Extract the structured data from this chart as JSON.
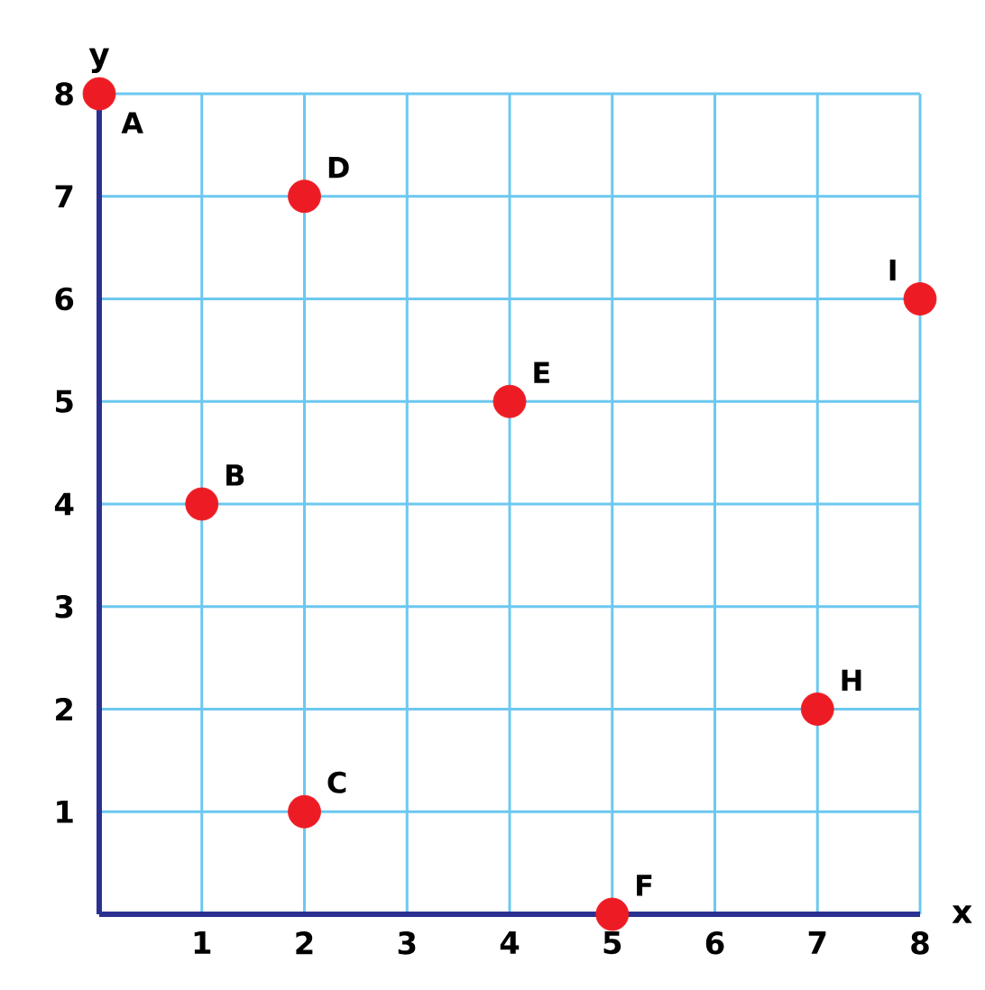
{
  "chart_data": {
    "type": "scatter",
    "xlabel": "x",
    "ylabel": "y",
    "x": [
      0,
      1,
      2,
      2,
      4,
      5,
      7,
      8
    ],
    "values": [
      8,
      4,
      1,
      7,
      5,
      0,
      2,
      6
    ],
    "color": "#ed1c24",
    "marker": "circle",
    "xlim": [
      0,
      8
    ],
    "ylim": [
      0,
      8
    ],
    "xticks": [
      1,
      2,
      3,
      4,
      5,
      6,
      7,
      8
    ],
    "yticks": [
      1,
      2,
      3,
      4,
      5,
      6,
      7,
      8
    ],
    "grid": true,
    "annotations": [
      {
        "text": "A",
        "x": 0,
        "y": 8
      },
      {
        "text": "B",
        "x": 1,
        "y": 4
      },
      {
        "text": "C",
        "x": 2,
        "y": 1
      },
      {
        "text": "D",
        "x": 2,
        "y": 7
      },
      {
        "text": "E",
        "x": 4,
        "y": 5
      },
      {
        "text": "F",
        "x": 5,
        "y": 0
      },
      {
        "text": "H",
        "x": 7,
        "y": 2
      },
      {
        "text": "I",
        "x": 8,
        "y": 6
      }
    ]
  }
}
